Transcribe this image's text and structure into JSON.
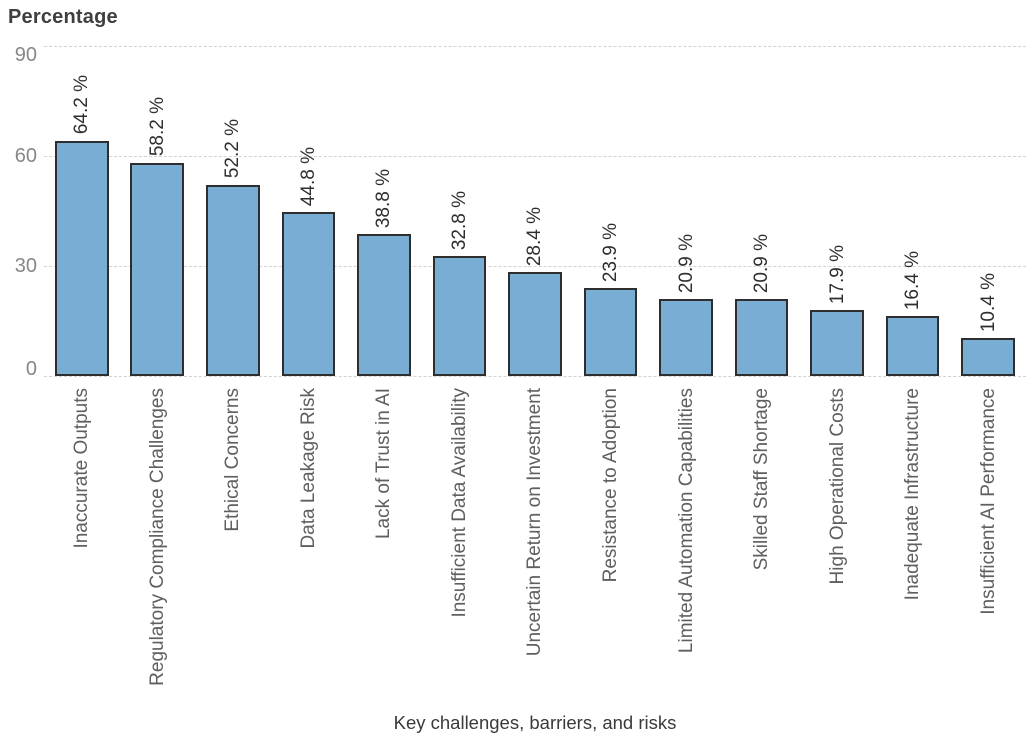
{
  "chart_data": {
    "type": "bar",
    "title": "",
    "ylabel": "Percentage",
    "xlabel": "Key challenges, barriers, and risks",
    "ylim": [
      0,
      90
    ],
    "yticks": [
      90,
      60,
      30,
      0
    ],
    "grid": "horizontal-dotted",
    "legend": "none",
    "bar_label_rotation_deg": 90,
    "category_label_rotation_deg": 90,
    "categories": [
      "Inaccurate Outputs",
      "Regulatory Compliance Challenges",
      "Ethical Concerns",
      "Data Leakage Risk",
      "Lack of Trust in AI",
      "Insufficient Data Availability",
      "Uncertain Return on Investment",
      "Resistance to Adoption",
      "Limited Automation Capabilities",
      "Skilled Staff Shortage",
      "High Operational Costs",
      "Inadequate Infrastructure",
      "Insufficient AI Performance"
    ],
    "values": [
      64.2,
      58.2,
      52.2,
      44.8,
      38.8,
      32.8,
      28.4,
      23.9,
      20.9,
      20.9,
      17.9,
      16.4,
      10.4
    ],
    "value_labels": [
      "64.2 %",
      "58.2 %",
      "52.2 %",
      "44.8 %",
      "38.8 %",
      "32.8 %",
      "28.4 %",
      "23.9 %",
      "20.9 %",
      "20.9 %",
      "17.9 %",
      "16.4 %",
      "10.4 %"
    ],
    "colors": {
      "bar_fill": "#7aadd3",
      "bar_border": "#2e2e2e",
      "gridline": "#d2d2d2",
      "tick_label": "#878787",
      "category_label": "#5f5f5f",
      "value_label": "#2e2e2e",
      "axis_title": "#3a3a3a"
    }
  }
}
